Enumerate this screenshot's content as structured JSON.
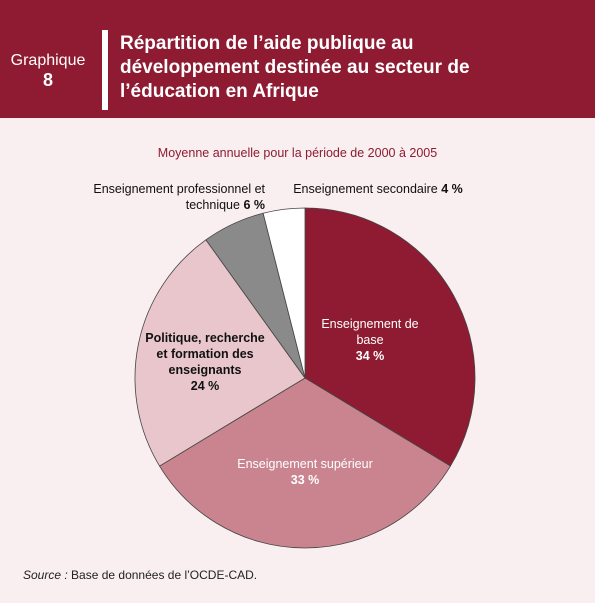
{
  "header": {
    "label": "Graphique",
    "number": "8",
    "title": "Répartition de l’aide publique au développement destinée au secteur de l’éducation en Afrique"
  },
  "chart_data": {
    "type": "pie",
    "subtitle": "Moyenne annuelle pour la période de 2000 à 2005",
    "categories": [
      "Enseignement de base",
      "Enseignement supérieur",
      "Politique, recherche et formation des enseignants",
      "Enseignement professionnel et technique",
      "Enseignement secondaire"
    ],
    "values": [
      34,
      33,
      24,
      6,
      4
    ],
    "value_labels": [
      "34 %",
      "33 %",
      "24 %",
      "6 %",
      "4 %"
    ],
    "colors": [
      "#8e1b32",
      "#c9848f",
      "#e8c6cb",
      "#8a8a8a",
      "#ffffff"
    ]
  },
  "source": {
    "label": "Source :",
    "text": "Base de données de l’OCDE-CAD."
  }
}
